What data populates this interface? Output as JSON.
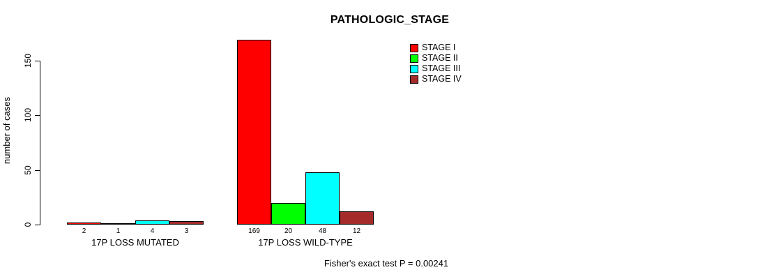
{
  "chart_data": {
    "type": "bar",
    "title": "PATHOLOGIC_STAGE",
    "ylabel": "number of cases",
    "xlabel": "",
    "ylim": [
      0,
      150
    ],
    "yticks": [
      0,
      50,
      100,
      150
    ],
    "grid": false,
    "legend_position": "top-right",
    "categories": [
      "17P LOSS MUTATED",
      "17P LOSS WILD-TYPE"
    ],
    "series": [
      {
        "name": "STAGE I",
        "color": "#FF0000",
        "values": [
          2,
          169
        ]
      },
      {
        "name": "STAGE II",
        "color": "#00FF00",
        "values": [
          1,
          20
        ]
      },
      {
        "name": "STAGE III",
        "color": "#00FFFF",
        "values": [
          4,
          48
        ]
      },
      {
        "name": "STAGE IV",
        "color": "#A52A2A",
        "values": [
          3,
          12
        ]
      }
    ],
    "annotation": "Fisher's exact test P = 0.00241"
  }
}
